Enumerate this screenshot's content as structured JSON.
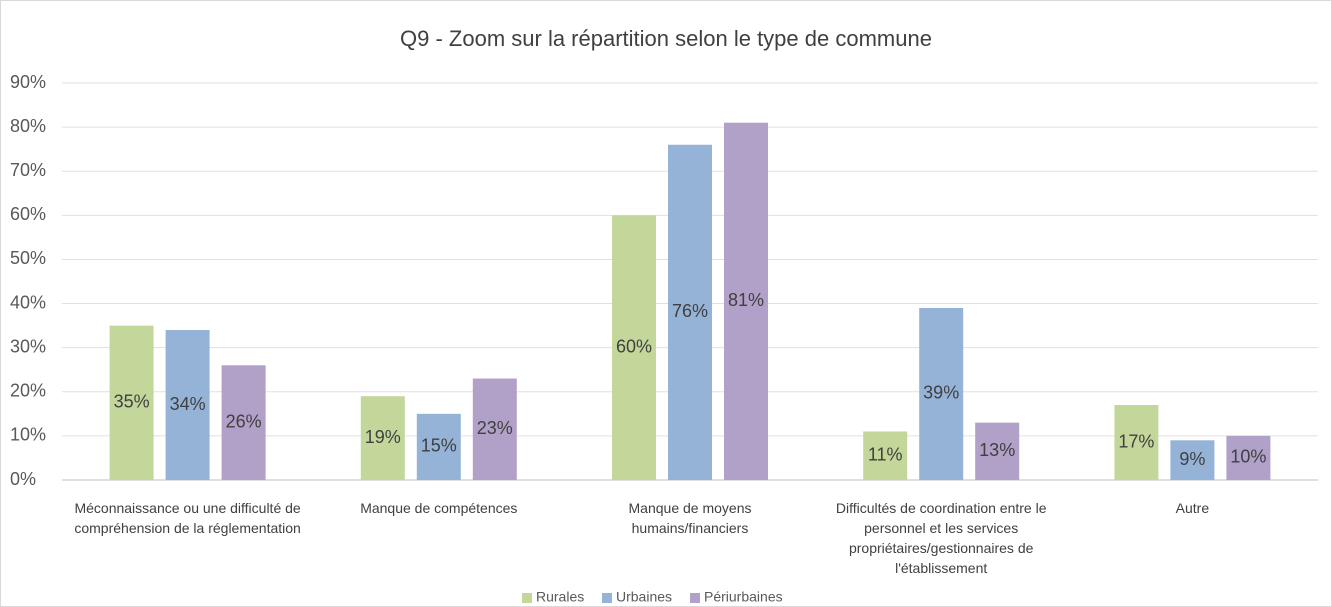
{
  "chart_data": {
    "type": "bar",
    "title": "Q9 - Zoom sur la répartition selon le type de commune",
    "categories": [
      "Méconnaissance ou une difficulté de compréhension de la réglementation",
      "Manque de compétences",
      "Manque de moyens humains/financiers",
      "Difficultés de coordination entre le personnel et les services propriétaires/gestionnaires de l'établissement",
      "Autre"
    ],
    "series": [
      {
        "name": "Rurales",
        "color": "#c4d79b",
        "values": [
          35,
          19,
          60,
          11,
          17
        ],
        "value_labels": [
          "35%",
          "19%",
          "60%",
          "11%",
          "17%"
        ]
      },
      {
        "name": "Urbaines",
        "color": "#95b3d7",
        "values": [
          34,
          15,
          76,
          39,
          9
        ],
        "value_labels": [
          "34%",
          "15%",
          "76%",
          "39%",
          "9%"
        ]
      },
      {
        "name": "Périurbaines",
        "color": "#b1a0c7",
        "values": [
          26,
          23,
          81,
          13,
          10
        ],
        "value_labels": [
          "26%",
          "23%",
          "81%",
          "13%",
          "10%"
        ]
      }
    ],
    "ylim": [
      0,
      90
    ],
    "yticks": [
      {
        "value": 0,
        "label": "0%"
      },
      {
        "value": 10,
        "label": "10%"
      },
      {
        "value": 20,
        "label": "20%"
      },
      {
        "value": 30,
        "label": "30%"
      },
      {
        "value": 40,
        "label": "40%"
      },
      {
        "value": 50,
        "label": "50%"
      },
      {
        "value": 60,
        "label": "60%"
      },
      {
        "value": 70,
        "label": "70%"
      },
      {
        "value": 80,
        "label": "80%"
      },
      {
        "value": 90,
        "label": "90%"
      }
    ],
    "grid": true,
    "legend": "bottom"
  }
}
